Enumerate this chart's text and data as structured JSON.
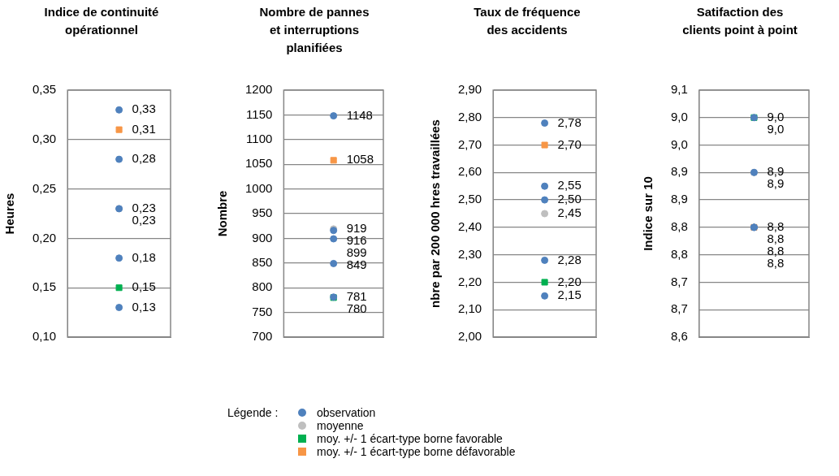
{
  "chart_data": [
    {
      "type": "scatter",
      "title": "Indice de continuité opérationnel",
      "ylabel": "Heures",
      "categories": [
        null
      ],
      "tick_labels": "y",
      "grid": "y",
      "legend": "bottom",
      "legend_title": "Légende :",
      "ylim": [
        0.1,
        0.35
      ],
      "yticks": [
        {
          "value": 0.1,
          "label": "0,10"
        },
        {
          "value": 0.15,
          "label": "0,15"
        },
        {
          "value": 0.2,
          "label": "0,20"
        },
        {
          "value": 0.25,
          "label": "0,25"
        },
        {
          "value": 0.3,
          "label": "0,30"
        },
        {
          "value": 0.35,
          "label": "0,35"
        }
      ],
      "series": [
        {
          "name": "observation",
          "color": "#4f81bd",
          "marker": "circle",
          "values": [
            0.33
          ],
          "value_labels": [
            "0,33"
          ]
        },
        {
          "color": "#4f81bd",
          "marker": "circle",
          "values": [
            0.28
          ],
          "value_labels": [
            "0,28"
          ]
        },
        {
          "color": "#4f81bd",
          "marker": "circle",
          "values": [
            0.23
          ],
          "value_labels": [
            "0,23"
          ]
        },
        {
          "color": "#4f81bd",
          "marker": "circle",
          "values": [
            0.18
          ],
          "value_labels": [
            "0,18"
          ]
        },
        {
          "color": "#4f81bd",
          "marker": "circle",
          "values": [
            0.13
          ],
          "value_labels": [
            "0,13"
          ]
        },
        {
          "name": "moyenne",
          "color": "#bfbfbf",
          "marker": "circle",
          "values": [
            0.23
          ],
          "value_labels": [
            "0,23"
          ]
        },
        {
          "name": "moy. +/- 1 écart-type borne favorable",
          "color": "#00b050",
          "marker": "square",
          "values": [
            0.15
          ],
          "value_labels": [
            "0,15"
          ]
        },
        {
          "name": "moy. +/- 1 écart-type borne défavorable",
          "color": "#f79646",
          "marker": "square",
          "values": [
            0.31
          ],
          "value_labels": [
            "0,31"
          ]
        }
      ]
    },
    {
      "type": "scatter",
      "title": "Nombre de pannes et interruptions planifiées",
      "ylabel": "Nombre",
      "categories": [
        null
      ],
      "tick_labels": "y",
      "grid": "y",
      "ylim": [
        700,
        1200
      ],
      "yticks": [
        700,
        750,
        800,
        850,
        900,
        950,
        1000,
        1050,
        1100,
        1150,
        1200
      ],
      "series": [
        {
          "color": "#4f81bd",
          "marker": "circle",
          "values": [
            1148
          ],
          "value_labels": [
            "1148"
          ]
        },
        {
          "color": "#4f81bd",
          "marker": "circle",
          "values": [
            916
          ],
          "value_labels": [
            "916"
          ]
        },
        {
          "color": "#4f81bd",
          "marker": "circle",
          "values": [
            899
          ],
          "value_labels": [
            "899"
          ]
        },
        {
          "color": "#4f81bd",
          "marker": "circle",
          "values": [
            849
          ],
          "value_labels": [
            "849"
          ]
        },
        {
          "color": "#4f81bd",
          "marker": "circle",
          "values": [
            781
          ],
          "value_labels": [
            "781"
          ]
        },
        {
          "color": "#bfbfbf",
          "marker": "circle",
          "values": [
            919
          ],
          "value_labels": [
            "919"
          ]
        },
        {
          "color": "#00b050",
          "marker": "square",
          "values": [
            780
          ],
          "value_labels": [
            "780"
          ]
        },
        {
          "color": "#f79646",
          "marker": "square",
          "values": [
            1058
          ],
          "value_labels": [
            "1058"
          ]
        }
      ]
    },
    {
      "type": "scatter",
      "title": "Taux de fréquence des accidents",
      "ylabel": "nbre par 200 000 hres travaillées",
      "categories": [
        null
      ],
      "tick_labels": "y",
      "grid": "y",
      "ylim": [
        2.0,
        2.9
      ],
      "yticks": [
        {
          "value": 2.0,
          "label": "2,00"
        },
        {
          "value": 2.1,
          "label": "2,10"
        },
        {
          "value": 2.2,
          "label": "2,20"
        },
        {
          "value": 2.3,
          "label": "2,30"
        },
        {
          "value": 2.4,
          "label": "2,40"
        },
        {
          "value": 2.5,
          "label": "2,50"
        },
        {
          "value": 2.6,
          "label": "2,60"
        },
        {
          "value": 2.7,
          "label": "2,70"
        },
        {
          "value": 2.8,
          "label": "2,80"
        },
        {
          "value": 2.9,
          "label": "2,90"
        }
      ],
      "series": [
        {
          "color": "#4f81bd",
          "marker": "circle",
          "values": [
            2.78
          ],
          "value_labels": [
            "2,78"
          ]
        },
        {
          "color": "#4f81bd",
          "marker": "circle",
          "values": [
            2.55
          ],
          "value_labels": [
            "2,55"
          ]
        },
        {
          "color": "#4f81bd",
          "marker": "circle",
          "values": [
            2.5
          ],
          "value_labels": [
            "2,50"
          ]
        },
        {
          "color": "#4f81bd",
          "marker": "circle",
          "values": [
            2.28
          ],
          "value_labels": [
            "2,28"
          ]
        },
        {
          "color": "#4f81bd",
          "marker": "circle",
          "values": [
            2.15
          ],
          "value_labels": [
            "2,15"
          ]
        },
        {
          "color": "#bfbfbf",
          "marker": "circle",
          "values": [
            2.45
          ],
          "value_labels": [
            "2,45"
          ]
        },
        {
          "color": "#00b050",
          "marker": "square",
          "values": [
            2.2
          ],
          "value_labels": [
            "2,20"
          ]
        },
        {
          "color": "#f79646",
          "marker": "square",
          "values": [
            2.7
          ],
          "value_labels": [
            "2,70"
          ]
        }
      ]
    },
    {
      "type": "scatter",
      "title": "Satifaction des clients point à point",
      "ylabel": "Indice sur 10",
      "categories": [
        null
      ],
      "tick_labels": "y",
      "grid": "y",
      "ylim": [
        8.6,
        9.05
      ],
      "yticks": [
        {
          "value": 8.6,
          "label": "8,6"
        },
        {
          "value": 8.65,
          "label": "8,7"
        },
        {
          "value": 8.7,
          "label": "8,7"
        },
        {
          "value": 8.75,
          "label": "8,8"
        },
        {
          "value": 8.8,
          "label": "8,8"
        },
        {
          "value": 8.85,
          "label": "8,9"
        },
        {
          "value": 8.9,
          "label": "8,9"
        },
        {
          "value": 8.95,
          "label": "9,0"
        },
        {
          "value": 9.0,
          "label": "9,0"
        },
        {
          "value": 9.05,
          "label": "9,1"
        }
      ],
      "series": [
        {
          "color": "#4f81bd",
          "marker": "circle",
          "values": [
            9.0
          ],
          "value_labels": [
            "9,0"
          ]
        },
        {
          "color": "#4f81bd",
          "marker": "circle",
          "values": [
            8.9
          ],
          "value_labels": [
            "8,9"
          ]
        },
        {
          "color": "#4f81bd",
          "marker": "circle",
          "values": [
            8.8
          ],
          "value_labels": [
            "8,8"
          ]
        },
        {
          "color": "#4f81bd",
          "marker": "circle",
          "values": [
            8.8
          ],
          "value_labels": [
            "8,8"
          ]
        },
        {
          "color": "#4f81bd",
          "marker": "circle",
          "values": [
            8.8
          ],
          "value_labels": [
            "8,8"
          ]
        },
        {
          "color": "#bfbfbf",
          "marker": "circle",
          "values": [
            8.9
          ],
          "value_labels": [
            "8,9"
          ]
        },
        {
          "color": "#00b050",
          "marker": "square",
          "values": [
            9.0
          ],
          "value_labels": [
            "9,0"
          ]
        },
        {
          "color": "#f79646",
          "marker": "square",
          "values": [
            8.8
          ],
          "value_labels": [
            "8,8"
          ]
        }
      ]
    }
  ]
}
